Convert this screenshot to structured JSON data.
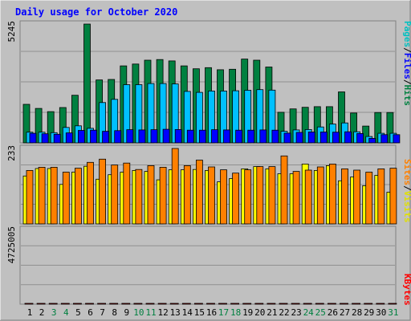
{
  "chart_data": [
    {
      "type": "bar",
      "title": "Daily usage for October 2020",
      "ytick_label": "5245",
      "ylim": [
        0,
        5245
      ],
      "categories": [
        "1",
        "2",
        "3",
        "4",
        "5",
        "6",
        "7",
        "8",
        "9",
        "10",
        "11",
        "12",
        "13",
        "14",
        "15",
        "16",
        "17",
        "18",
        "19",
        "20",
        "21",
        "22",
        "23",
        "24",
        "25",
        "26",
        "27",
        "28",
        "29",
        "30",
        "31"
      ],
      "weekend_days": [
        "3",
        "4",
        "10",
        "11",
        "17",
        "18",
        "24",
        "25",
        "31"
      ],
      "legend": [
        "Pages",
        "/",
        "Files",
        "/",
        "Hits"
      ],
      "series": [
        {
          "name": "Hits",
          "color": "#008040",
          "values": [
            1700,
            1520,
            1380,
            1560,
            2100,
            5245,
            2780,
            2800,
            3400,
            3480,
            3650,
            3680,
            3620,
            3400,
            3270,
            3320,
            3230,
            3250,
            3700,
            3650,
            3350,
            1350,
            1500,
            1570,
            1600,
            1600,
            2250,
            1320,
            740,
            1340,
            1340
          ]
        },
        {
          "name": "Files",
          "color": "#00c0ff",
          "values": [
            470,
            470,
            450,
            680,
            750,
            640,
            1780,
            1920,
            2570,
            2570,
            2620,
            2620,
            2600,
            2270,
            2230,
            2290,
            2290,
            2300,
            2320,
            2350,
            2330,
            510,
            570,
            590,
            700,
            830,
            880,
            490,
            280,
            420,
            420
          ]
        },
        {
          "name": "Pages",
          "color": "#0000ff",
          "values": [
            420,
            400,
            380,
            440,
            550,
            560,
            510,
            540,
            580,
            570,
            580,
            600,
            590,
            560,
            560,
            580,
            570,
            560,
            560,
            570,
            560,
            430,
            460,
            480,
            480,
            470,
            490,
            410,
            200,
            360,
            360
          ]
        }
      ]
    },
    {
      "type": "bar",
      "ytick_label": "233",
      "ylim": [
        0,
        233
      ],
      "categories": [
        "1",
        "2",
        "3",
        "4",
        "5",
        "6",
        "7",
        "8",
        "9",
        "10",
        "11",
        "12",
        "13",
        "14",
        "15",
        "16",
        "17",
        "18",
        "19",
        "20",
        "21",
        "22",
        "23",
        "24",
        "25",
        "26",
        "27",
        "28",
        "29",
        "30",
        "31"
      ],
      "legend": [
        "Sites",
        "/",
        "Visits"
      ],
      "series": [
        {
          "name": "Visits",
          "color": "#ffff00",
          "values": [
            148,
            171,
            171,
            122,
            160,
            178,
            138,
            152,
            160,
            165,
            162,
            136,
            167,
            167,
            168,
            165,
            130,
            140,
            170,
            177,
            170,
            155,
            155,
            185,
            165,
            180,
            133,
            145,
            118,
            150,
            98
          ]
        },
        {
          "name": "Sites",
          "color": "#ff8000",
          "values": [
            165,
            175,
            175,
            160,
            172,
            190,
            200,
            182,
            188,
            168,
            180,
            175,
            233,
            180,
            197,
            176,
            167,
            157,
            167,
            177,
            177,
            210,
            162,
            166,
            176,
            185,
            170,
            166,
            160,
            170,
            172
          ]
        }
      ]
    },
    {
      "type": "bar",
      "ytick_label": "4725005",
      "ylim": [
        0,
        4725005
      ],
      "categories": [
        "1",
        "2",
        "3",
        "4",
        "5",
        "6",
        "7",
        "8",
        "9",
        "10",
        "11",
        "12",
        "13",
        "14",
        "15",
        "16",
        "17",
        "18",
        "19",
        "20",
        "21",
        "22",
        "23",
        "24",
        "25",
        "26",
        "27",
        "28",
        "29",
        "30",
        "31"
      ],
      "legend": [
        "KBytes"
      ],
      "series": [
        {
          "name": "KBytes",
          "color": "#ff0000",
          "values": [
            4040,
            3640,
            3530,
            3990,
            4020,
            4725,
            3760,
            3080,
            2720,
            3680,
            3840,
            4170,
            3890,
            4170,
            4460,
            3380,
            4140,
            4270,
            3670,
            3850,
            3760,
            3230,
            3850,
            3300,
            3710,
            3780,
            3500,
            3400,
            3340,
            3440,
            2960
          ]
        }
      ]
    }
  ]
}
